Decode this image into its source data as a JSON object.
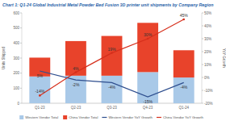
{
  "chart_data": {
    "type": "bar",
    "title": "Chart 1: Q1-24 Global Industrial Metal Powder Bed Fusion 3D printer unit shipments by Company Region",
    "categories": [
      "Q1-23",
      "Q2-23",
      "Q3-23",
      "Q4-23",
      "Q1-24"
    ],
    "ylabel": "Units Shipped",
    "y2label": "YoY Growth",
    "stacked": true,
    "legend": "bottom",
    "grid": false,
    "ylim": [
      0,
      600
    ],
    "yticks": [
      0,
      100,
      200,
      300,
      400,
      500,
      600
    ],
    "y2lim": [
      -20,
      50
    ],
    "y2ticks": [
      {
        "value": -20,
        "label": "-20%"
      },
      {
        "value": -10,
        "label": "-10%"
      },
      {
        "value": 0,
        "label": "0%"
      },
      {
        "value": 10,
        "label": "10%"
      },
      {
        "value": 20,
        "label": "20%"
      },
      {
        "value": 30,
        "label": "30%"
      },
      {
        "value": 40,
        "label": "40%"
      },
      {
        "value": 50,
        "label": "50%"
      }
    ],
    "series": [
      {
        "name": "Western Vendor Total",
        "type": "bar",
        "color": "#a9c9e8",
        "values": [
          178,
          183,
          183,
          207,
          171
        ]
      },
      {
        "name": "China Vendor Total",
        "type": "bar",
        "color": "#e8432b",
        "values": [
          125,
          230,
          264,
          327,
          181
        ]
      },
      {
        "name": "Western Vendor YoY Growth",
        "type": "line",
        "axis": "y2",
        "color": "#2f4f8f",
        "data_labels": true,
        "values": [
          5,
          -2,
          -4,
          -15,
          -4
        ],
        "value_labels": [
          "5%",
          "-2%",
          "-4%",
          "-15%",
          "-4%"
        ]
      },
      {
        "name": "China Vendor YoY Growth",
        "type": "line",
        "axis": "y2",
        "color": "#d62f1c",
        "marker": "circle",
        "data_labels": true,
        "values": [
          -14,
          4,
          19,
          30,
          45
        ],
        "value_labels": [
          "-14%",
          "4%",
          "19%",
          "30%",
          "45%"
        ]
      }
    ]
  }
}
